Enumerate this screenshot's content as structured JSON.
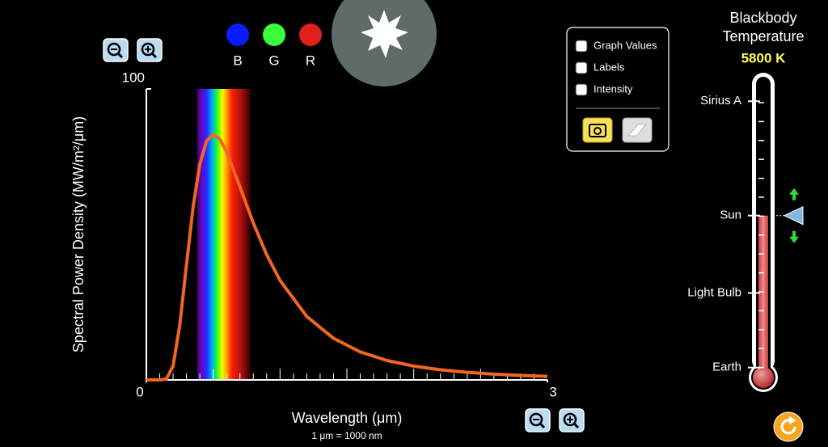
{
  "chart_data": {
    "type": "line",
    "y_label": "Spectral Power Density (MW/m²/μm)",
    "x_label": "Wavelength (μm)",
    "x_note": "1 μm  =  1000 nm",
    "x": [
      0,
      0.1,
      0.15,
      0.2,
      0.25,
      0.3,
      0.35,
      0.4,
      0.45,
      0.5,
      0.55,
      0.6,
      0.7,
      0.8,
      0.9,
      1.0,
      1.2,
      1.4,
      1.6,
      1.8,
      2.0,
      2.2,
      2.4,
      2.6,
      2.8,
      3.0
    ],
    "series": [
      {
        "color": "#f26522",
        "values": [
          0,
          0,
          0.32,
          4.81,
          18.8,
          39.5,
          59.5,
          74.1,
          82.1,
          84.4,
          82.7,
          78.4,
          66.3,
          53.9,
          43.0,
          34.2,
          21.8,
          14.3,
          9.62,
          6.67,
          4.75,
          3.48,
          2.6,
          1.97,
          1.53,
          1.2
        ]
      }
    ],
    "xlim": [
      0,
      3
    ],
    "ylim": [
      0,
      100
    ],
    "xticks": [
      0,
      3
    ],
    "yticks": [
      100
    ],
    "x_minor_step": 0.1,
    "visible_band": [
      0.38,
      0.78
    ]
  },
  "color_dots": [
    {
      "label": "B",
      "color": "#0a1cff"
    },
    {
      "label": "G",
      "color": "#3bff3b"
    },
    {
      "label": "R",
      "color": "#e0201a"
    }
  ],
  "options": [
    "Graph Values",
    "Labels",
    "Intensity"
  ],
  "thermometer": {
    "title": [
      "Blackbody",
      "Temperature"
    ],
    "temperature": {
      "value": 5800,
      "label": "5800 K"
    },
    "range": [
      0,
      11000
    ],
    "markers": [
      {
        "label": "Sirius A",
        "value": 9940
      },
      {
        "label": "Sun",
        "value": 5800
      },
      {
        "label": "Light Bulb",
        "value": 3000
      },
      {
        "label": "Earth",
        "value": 300
      }
    ]
  }
}
